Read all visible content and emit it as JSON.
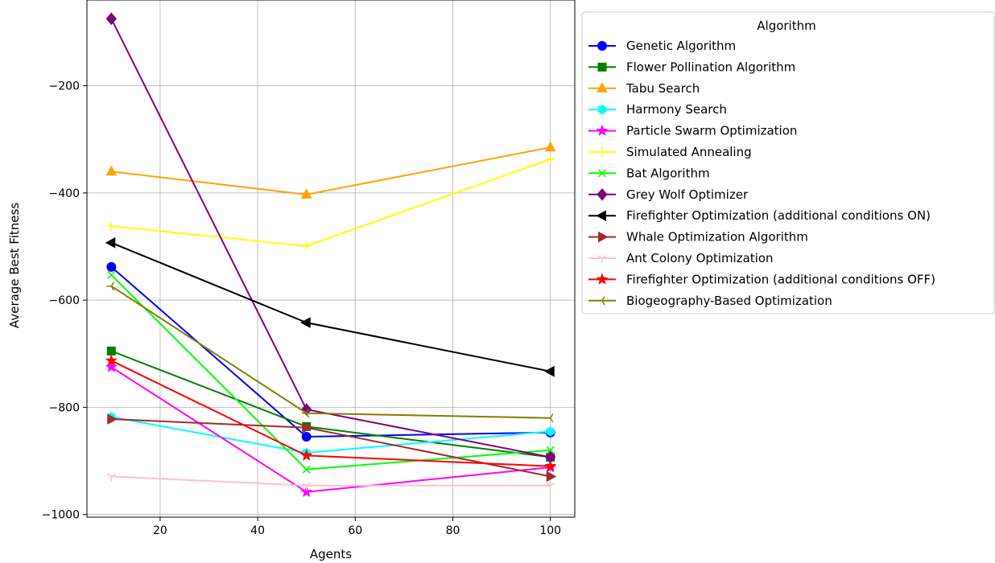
{
  "chart_data": {
    "type": "line",
    "title": "",
    "xlabel": "Agents",
    "ylabel": "Average Best Fitness",
    "x": [
      10,
      50,
      100
    ],
    "xlim": [
      5,
      105
    ],
    "ylim": [
      -1005,
      -40
    ],
    "xticks": [
      20,
      40,
      60,
      80,
      100
    ],
    "xtick_labels": [
      "20",
      "40",
      "60",
      "80",
      "100"
    ],
    "yticks": [
      -1000,
      -800,
      -600,
      -400,
      -200
    ],
    "ytick_labels": [
      "−1000",
      "−800",
      "−600",
      "−400",
      "−200"
    ],
    "grid": true,
    "legend": {
      "title": "Algorithm",
      "placement": "outside-right-top"
    },
    "series": [
      {
        "name": "Genetic Algorithm",
        "values": [
          -538,
          -855,
          -847
        ],
        "color": "#0000ff",
        "marker": "circle"
      },
      {
        "name": "Flower Pollination Algorithm",
        "values": [
          -695,
          -836,
          -893
        ],
        "color": "#008000",
        "marker": "square"
      },
      {
        "name": "Tabu Search",
        "values": [
          -360,
          -403,
          -315
        ],
        "color": "#ffa500",
        "marker": "triangle-up"
      },
      {
        "name": "Harmony Search",
        "values": [
          -818,
          -885,
          -845
        ],
        "color": "#00ffff",
        "marker": "hexagon"
      },
      {
        "name": "Particle Swarm Optimization",
        "values": [
          -725,
          -958,
          -912
        ],
        "color": "#ff00ff",
        "marker": "star"
      },
      {
        "name": "Simulated Annealing",
        "values": [
          -462,
          -499,
          -337
        ],
        "color": "#ffff00",
        "marker": "plus"
      },
      {
        "name": "Bat Algorithm",
        "values": [
          -553,
          -916,
          -880
        ],
        "color": "#00ff00",
        "marker": "x"
      },
      {
        "name": "Grey Wolf Optimizer",
        "values": [
          -75,
          -804,
          -893
        ],
        "color": "#800080",
        "marker": "diamond"
      },
      {
        "name": "Firefighter Optimization (additional conditions ON)",
        "values": [
          -493,
          -642,
          -733
        ],
        "color": "#000000",
        "marker": "triangle-left"
      },
      {
        "name": "Whale Optimization Algorithm",
        "values": [
          -822,
          -838,
          -929
        ],
        "color": "#a52a2a",
        "marker": "triangle-right"
      },
      {
        "name": "Ant Colony Optimization",
        "values": [
          -929,
          -946,
          -946
        ],
        "color": "#ffc0cb",
        "marker": "tri-down"
      },
      {
        "name": "Firefighter Optimization (additional conditions OFF)",
        "values": [
          -713,
          -890,
          -910
        ],
        "color": "#ff0000",
        "marker": "star"
      },
      {
        "name": "Biogeography-Based Optimization",
        "values": [
          -574,
          -811,
          -820
        ],
        "color": "#808000",
        "marker": "tri-left"
      }
    ]
  }
}
